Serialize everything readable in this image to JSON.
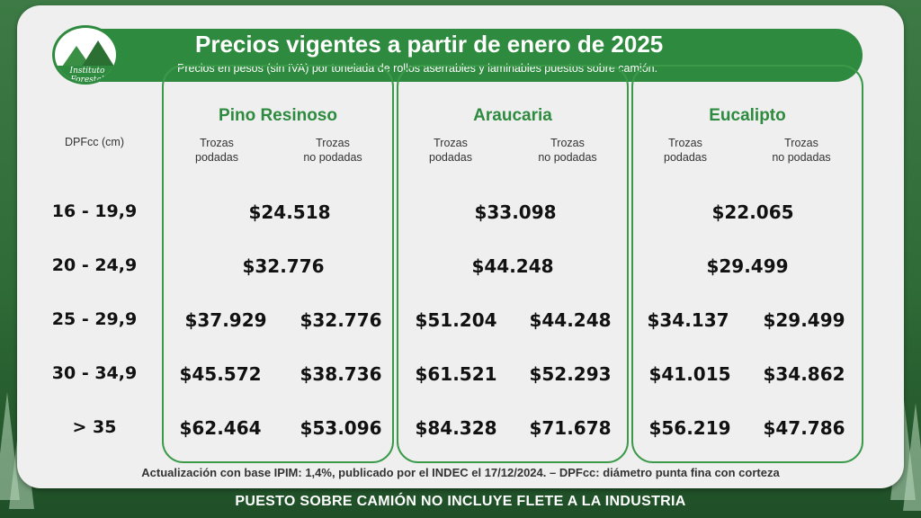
{
  "header": {
    "title": "Precios vigentes a partir de enero de 2025",
    "subtitle": "Precios en pesos (sin IVA) por tonelada de rollos aserrables y laminables puestos sobre camión.",
    "logo_text": "Instituto Forestal"
  },
  "table": {
    "row_header": "DPFcc (cm)",
    "columns": [
      {
        "species": "Pino Resinoso",
        "sub1": "Trozas podadas",
        "sub2": "Trozas no podadas",
        "prices": [
          "$24.518",
          "$32.776",
          "$37.929",
          "$32.776",
          "$45.572",
          "$38.736",
          "$62.464",
          "$53.096"
        ]
      },
      {
        "species": "Araucaria",
        "sub1": "Trozas podadas",
        "sub2": "Trozas no podadas",
        "prices": [
          "$33.098",
          "$44.248",
          "$51.204",
          "$44.248",
          "$61.521",
          "$52.293",
          "$84.328",
          "$71.678"
        ]
      },
      {
        "species": "Eucalipto",
        "sub1": "Trozas podadas",
        "sub2": "Trozas no podadas",
        "prices": [
          "$22.065",
          "$29.499",
          "$34.137",
          "$29.499",
          "$41.015",
          "$34.862",
          "$56.219",
          "$47.786"
        ]
      }
    ],
    "rows": [
      "16 - 19,9",
      "20 - 24,9",
      "25 - 29,9",
      "30 - 34,9",
      "> 35"
    ]
  },
  "footnote": "Actualización con base IPIM: 1,4%, publicado por el INDEC el 17/12/2024.  –  DPFcc: diámetro punta fina con corteza",
  "banner": "PUESTO SOBRE CAMIÓN NO INCLUYE FLETE A LA INDUSTRIA",
  "colors": {
    "accent": "#2e8a3e",
    "card": "#efefef",
    "text": "#111111"
  }
}
